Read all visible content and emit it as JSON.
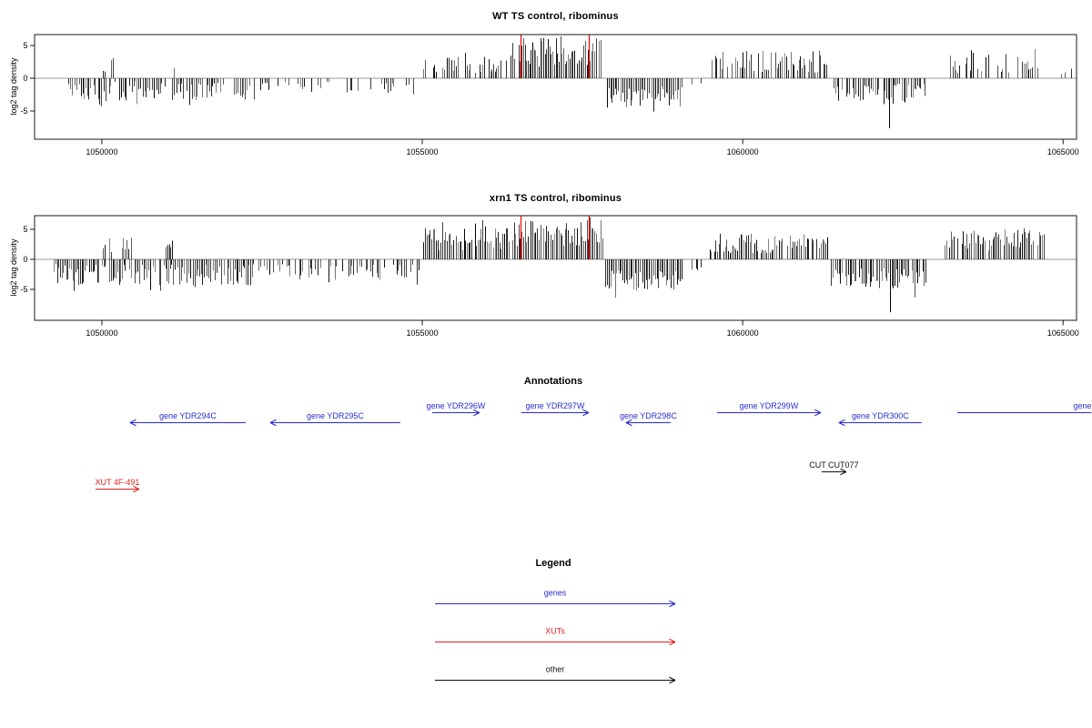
{
  "figure": {
    "annotations_title": "Annotations",
    "legend_title": "Legend"
  },
  "chart_data": [
    {
      "type": "bar",
      "title": "WT TS control, ribominus",
      "ylabel": "log2 tag density",
      "xlim": [
        1048950,
        1065210
      ],
      "ylim": [
        -9.3,
        6.7
      ],
      "x_ticks": [
        1050000,
        1055000,
        1060000,
        1065000
      ],
      "y_ticks": [
        5,
        0,
        -5
      ],
      "grid": false,
      "bar_color": "#000000",
      "highlight_color": "#ff0000",
      "highlight_lines_x": [
        1056530,
        1057600
      ],
      "regions": [
        {
          "start": 1049480,
          "end": 1052400,
          "sign": -1,
          "amp": [
            0.5,
            3.4
          ],
          "density": 0.7
        },
        {
          "start": 1050020,
          "end": 1050480,
          "sign": 1,
          "amp": [
            1.0,
            4.2
          ],
          "density": 0.3
        },
        {
          "start": 1051000,
          "end": 1051140,
          "sign": 1,
          "amp": [
            1.0,
            1.8
          ],
          "density": 0.4
        },
        {
          "start": 1052450,
          "end": 1054950,
          "sign": -1,
          "amp": [
            0.5,
            2.3
          ],
          "density": 0.35
        },
        {
          "start": 1055020,
          "end": 1056350,
          "sign": 1,
          "amp": [
            0.8,
            3.3
          ],
          "density": 0.5
        },
        {
          "start": 1056380,
          "end": 1057800,
          "sign": 1,
          "amp": [
            1.8,
            6.2
          ],
          "density": 0.9
        },
        {
          "start": 1057860,
          "end": 1059060,
          "sign": -1,
          "amp": [
            1.2,
            4.6
          ],
          "density": 0.85
        },
        {
          "start": 1059150,
          "end": 1059420,
          "sign": -1,
          "amp": [
            0.5,
            1.6
          ],
          "density": 0.25
        },
        {
          "start": 1059520,
          "end": 1061310,
          "sign": 1,
          "amp": [
            0.8,
            4.2
          ],
          "density": 0.6
        },
        {
          "start": 1061420,
          "end": 1062860,
          "sign": -1,
          "amp": [
            0.8,
            3.9
          ],
          "density": 0.75
        },
        {
          "start": 1063230,
          "end": 1064620,
          "sign": 1,
          "amp": [
            0.8,
            3.9
          ],
          "density": 0.5
        },
        {
          "start": 1064950,
          "end": 1065150,
          "sign": 1,
          "amp": [
            0.5,
            1.6
          ],
          "density": 0.35
        }
      ],
      "spikes": [
        {
          "x": 1062280,
          "value": -7.6
        }
      ]
    },
    {
      "type": "bar",
      "title": "xrn1 TS control, ribominus",
      "ylabel": "log2 tag density",
      "xlim": [
        1048950,
        1065210
      ],
      "ylim": [
        -9.3,
        6.7
      ],
      "x_ticks": [
        1050000,
        1055000,
        1060000,
        1065000
      ],
      "y_ticks": [
        5,
        0,
        -5
      ],
      "grid": false,
      "bar_color": "#000000",
      "highlight_color": "#ff0000",
      "highlight_lines_x": [
        1056530,
        1057600
      ],
      "regions": [
        {
          "start": 1049250,
          "end": 1052400,
          "sign": -1,
          "amp": [
            0.8,
            4.4
          ],
          "density": 0.85
        },
        {
          "start": 1050020,
          "end": 1050500,
          "sign": 1,
          "amp": [
            1.2,
            3.6
          ],
          "density": 0.35
        },
        {
          "start": 1050950,
          "end": 1051150,
          "sign": 1,
          "amp": [
            1.5,
            2.8
          ],
          "density": 0.4
        },
        {
          "start": 1052450,
          "end": 1054950,
          "sign": -1,
          "amp": [
            0.8,
            3.4
          ],
          "density": 0.55
        },
        {
          "start": 1055020,
          "end": 1056360,
          "sign": 1,
          "amp": [
            1.5,
            5.4
          ],
          "density": 0.9
        },
        {
          "start": 1056380,
          "end": 1057810,
          "sign": 1,
          "amp": [
            2.2,
            6.6
          ],
          "density": 0.95
        },
        {
          "start": 1057860,
          "end": 1059080,
          "sign": -1,
          "amp": [
            1.8,
            5.2
          ],
          "density": 0.95
        },
        {
          "start": 1059150,
          "end": 1059430,
          "sign": -1,
          "amp": [
            0.6,
            2.0
          ],
          "density": 0.3
        },
        {
          "start": 1059480,
          "end": 1061320,
          "sign": 1,
          "amp": [
            1.0,
            4.4
          ],
          "density": 0.85
        },
        {
          "start": 1061380,
          "end": 1062900,
          "sign": -1,
          "amp": [
            1.4,
            5.0
          ],
          "density": 0.9
        },
        {
          "start": 1063150,
          "end": 1064700,
          "sign": 1,
          "amp": [
            1.5,
            4.9
          ],
          "density": 0.85
        }
      ],
      "spikes": [
        {
          "x": 1062300,
          "value": -8.8
        }
      ]
    }
  ],
  "annotations": {
    "title": "Annotations",
    "colors": {
      "genes": "#2a2ad0",
      "xuts": "#e02020",
      "other": "#101010"
    },
    "genes": [
      {
        "label": "gene YDR294C",
        "start": 1050440,
        "end": 1052244,
        "dir": "left",
        "row": "lower"
      },
      {
        "label": "gene YDR295C",
        "start": 1052627,
        "end": 1054658,
        "dir": "left",
        "row": "lower"
      },
      {
        "label": "gene YDR296W",
        "start": 1055155,
        "end": 1055893,
        "dir": "right",
        "row": "upper"
      },
      {
        "label": "gene YDR297W",
        "start": 1056546,
        "end": 1057597,
        "dir": "right",
        "row": "upper"
      },
      {
        "label": "gene YDR298C",
        "start": 1058179,
        "end": 1058875,
        "dir": "left",
        "row": "lower"
      },
      {
        "label": "gene YDR299W",
        "start": 1059599,
        "end": 1061218,
        "dir": "right",
        "row": "upper"
      },
      {
        "label": "gene YDR300C",
        "start": 1061502,
        "end": 1062794,
        "dir": "left",
        "row": "lower"
      },
      {
        "label": "gene",
        "start": 1063348,
        "end": 1066100,
        "dir": "right",
        "row": "upper",
        "label_bp": 1065300
      }
    ],
    "xuts": [
      {
        "label": "XUT 4F-491",
        "start": 1049901,
        "end": 1050582,
        "dir": "right"
      }
    ],
    "others": [
      {
        "label": "CUT CUT077",
        "start": 1061232,
        "end": 1061616,
        "dir": "right"
      }
    ]
  },
  "legend": {
    "title": "Legend",
    "items": [
      {
        "label": "genes",
        "color": "#2a2ad0"
      },
      {
        "label": "XUTs",
        "color": "#e02020"
      },
      {
        "label": "other",
        "color": "#101010"
      }
    ]
  }
}
